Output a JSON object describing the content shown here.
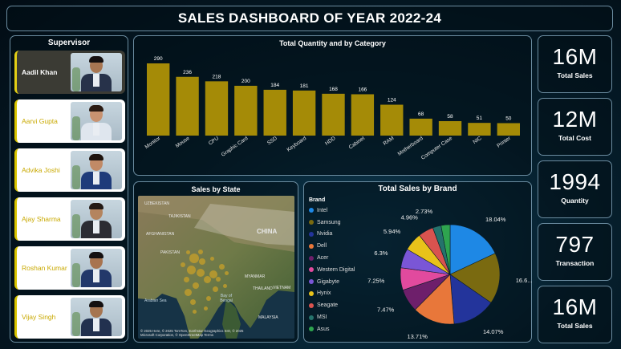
{
  "header": {
    "title": "SALES DASHBOARD OF YEAR 2022-24"
  },
  "supervisor": {
    "title": "Supervisor",
    "people": [
      {
        "name": "Aadil Khan",
        "active": true,
        "skin": "#a87652",
        "hair": "#151010",
        "suit": "#27324a"
      },
      {
        "name": "Aarvi Gupta",
        "active": false,
        "skin": "#c89270",
        "hair": "#2a1a12",
        "suit": "#dfe6ee"
      },
      {
        "name": "Advika Joshi",
        "active": false,
        "skin": "#c18a66",
        "hair": "#1e130d",
        "suit": "#1f3b7a"
      },
      {
        "name": "Ajay Sharma",
        "active": false,
        "skin": "#b4845e",
        "hair": "#231915",
        "suit": "#2c2c33"
      },
      {
        "name": "Roshan Kumar",
        "active": false,
        "skin": "#a8744f",
        "hair": "#141010",
        "suit": "#23386a"
      },
      {
        "name": "Vijay Singh",
        "active": false,
        "skin": "#a67550",
        "hair": "#141010",
        "suit": "#22314f"
      }
    ]
  },
  "kpis": [
    {
      "value": "16M",
      "label": "Total Sales"
    },
    {
      "value": "12M",
      "label": "Total Cost"
    },
    {
      "value": "1994",
      "label": "Quantity"
    },
    {
      "value": "797",
      "label": "Transaction"
    },
    {
      "value": "16M",
      "label": "Total Sales"
    }
  ],
  "map": {
    "title": "Sales by State",
    "labels": [
      {
        "text": "Uzbekistan",
        "cls": ""
      },
      {
        "text": "Tajikistan",
        "cls": ""
      },
      {
        "text": "Afghanistan",
        "cls": ""
      },
      {
        "text": "Pakistan",
        "cls": ""
      },
      {
        "text": "China",
        "cls": "big"
      },
      {
        "text": "Myanmar",
        "cls": ""
      },
      {
        "text": "Thailand",
        "cls": ""
      },
      {
        "text": "Vietnam",
        "cls": ""
      },
      {
        "text": "Malaysia",
        "cls": ""
      },
      {
        "text": "Arabian Sea",
        "cls": "ocean"
      },
      {
        "text": "Bay of Bengal",
        "cls": "ocean"
      }
    ],
    "credit_1": "© 2025 Here, © 2025 TomTom, Earthstar Geographics SIO, © 2025",
    "credit_2": "Microsoft Corporation, © OpenStreetMap   Terms",
    "credit_logo": "Microsoft Bing"
  },
  "colors": {
    "bar": "#a58b07",
    "bar_label": "#ffffff",
    "panel_border": "#6b8ca0"
  },
  "chart_data": [
    {
      "type": "bar",
      "title": "Total Quantity and by Category",
      "categories": [
        "Monitor",
        "Mouse",
        "CPU",
        "Graphic Card",
        "SSD",
        "Keyboard",
        "HDD",
        "Cabinet",
        "RAM",
        "Motherboard",
        "Computer Case",
        "NIC",
        "Printer"
      ],
      "values": [
        290,
        236,
        218,
        200,
        184,
        181,
        168,
        166,
        124,
        68,
        58,
        51,
        50
      ],
      "xlabel": "",
      "ylabel": "",
      "ylim": [
        0,
        290
      ],
      "grid": false,
      "data_labels": true
    },
    {
      "type": "pie",
      "title": "Total Sales by Brand",
      "legend_title": "Brand",
      "legend_position": "left",
      "series": [
        {
          "name": "Intel",
          "value": 18.04,
          "label": "18.04%",
          "color": "#1e88e5"
        },
        {
          "name": "Samsung",
          "value": 16.6,
          "label": "16.6...",
          "color": "#7a6a10"
        },
        {
          "name": "Nvidia",
          "value": 14.07,
          "label": "14.07%",
          "color": "#23349b"
        },
        {
          "name": "Dell",
          "value": 13.71,
          "label": "13.71%",
          "color": "#e8773a"
        },
        {
          "name": "Acer",
          "value": 7.47,
          "label": "7.47%",
          "color": "#6e1f6b"
        },
        {
          "name": "Western Digital",
          "value": 7.25,
          "label": "7.25%",
          "color": "#e14a9e"
        },
        {
          "name": "Gigabyte",
          "value": 6.3,
          "label": "6.3%",
          "color": "#7a56d6"
        },
        {
          "name": "Hynix",
          "value": 5.94,
          "label": "5.94%",
          "color": "#e8c21a"
        },
        {
          "name": "Seagate",
          "value": 4.96,
          "label": "4.96%",
          "color": "#d9534f"
        },
        {
          "name": "MSI",
          "value": 2.73,
          "label": "2.73%",
          "color": "#25736c"
        },
        {
          "name": "Asus",
          "value": 2.93,
          "label": "",
          "color": "#2ea44f"
        }
      ]
    }
  ]
}
